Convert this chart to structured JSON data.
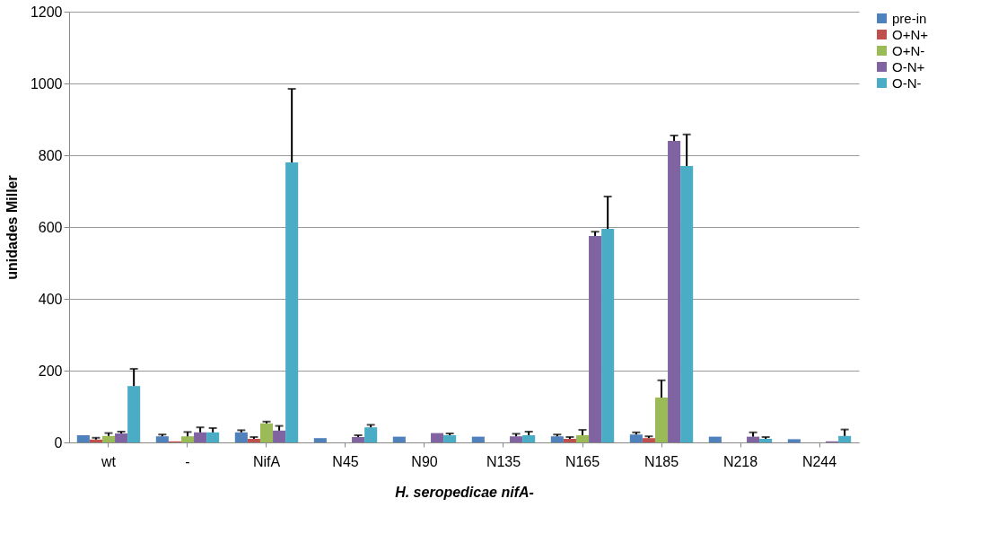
{
  "chart_data": {
    "type": "bar",
    "xlabel": "H. seropedicae nifA-",
    "ylabel": "unidades Miller",
    "categories": [
      "wt",
      "-",
      "NifA",
      "N45",
      "N90",
      "N135",
      "N165",
      "N185",
      "N218",
      "N244"
    ],
    "series": [
      {
        "name": "pre-in",
        "color": "#4f81bd",
        "values": [
          20,
          17,
          28,
          12,
          16,
          16,
          17,
          22,
          16,
          9
        ],
        "errors": [
          null,
          5,
          6,
          null,
          null,
          null,
          5,
          6,
          null,
          null
        ]
      },
      {
        "name": "O+N+",
        "color": "#c0504d",
        "values": [
          8,
          3,
          10,
          null,
          null,
          null,
          10,
          12,
          null,
          null
        ],
        "errors": [
          5,
          null,
          5,
          null,
          null,
          null,
          5,
          5,
          null,
          null
        ]
      },
      {
        "name": "O+N-",
        "color": "#9bbb59",
        "values": [
          18,
          17,
          53,
          null,
          null,
          null,
          20,
          125,
          null,
          null
        ],
        "errors": [
          8,
          12,
          5,
          null,
          null,
          null,
          15,
          48,
          null,
          null
        ]
      },
      {
        "name": "O-N+",
        "color": "#8064a2",
        "values": [
          25,
          28,
          33,
          15,
          26,
          17,
          575,
          840,
          16,
          3
        ],
        "errors": [
          5,
          14,
          13,
          5,
          null,
          7,
          12,
          15,
          12,
          null
        ]
      },
      {
        "name": "O-N-",
        "color": "#4bacc6",
        "values": [
          157,
          28,
          780,
          42,
          20,
          20,
          595,
          770,
          10,
          18
        ],
        "errors": [
          48,
          12,
          205,
          7,
          5,
          10,
          90,
          88,
          5,
          18
        ]
      }
    ],
    "ylim": [
      0,
      1200
    ],
    "yticks": [
      0,
      200,
      400,
      600,
      800,
      1000,
      1200
    ],
    "grid": "y",
    "legend": "right"
  }
}
